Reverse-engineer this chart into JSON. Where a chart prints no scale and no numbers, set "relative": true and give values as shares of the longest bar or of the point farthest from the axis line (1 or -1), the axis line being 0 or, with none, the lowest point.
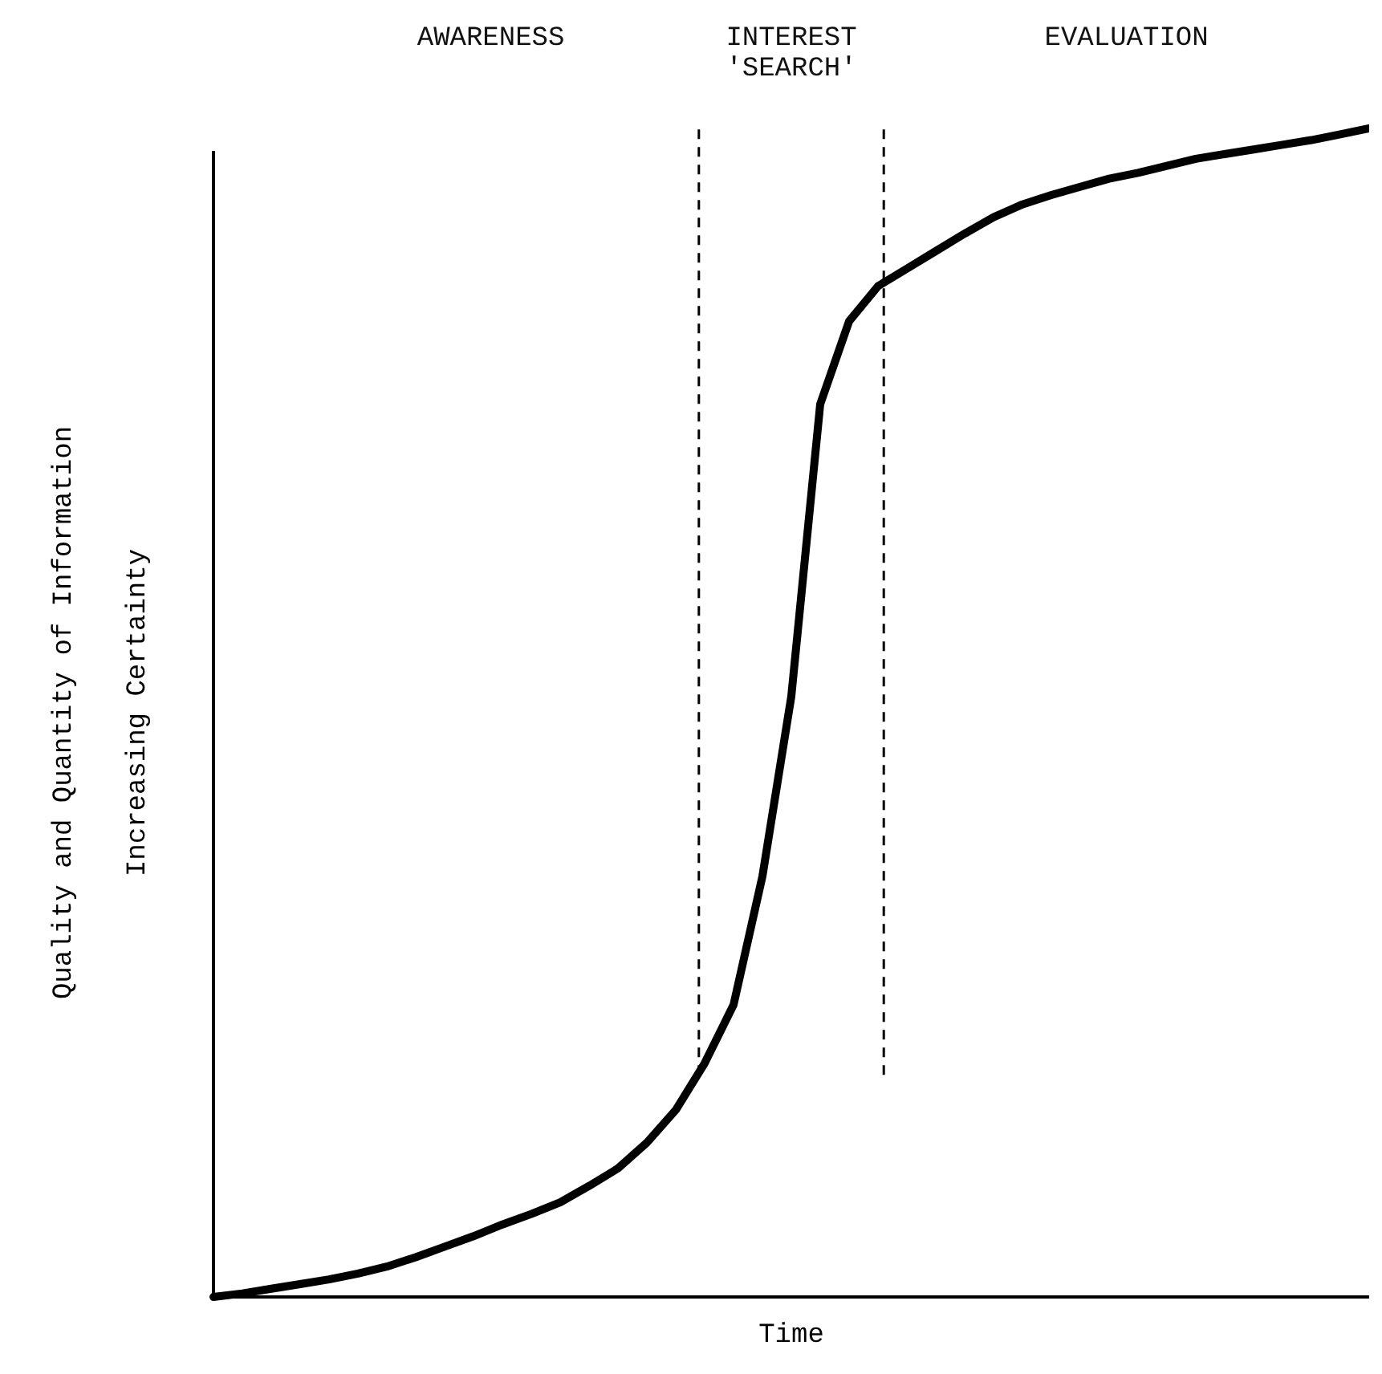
{
  "chart_data": {
    "type": "line",
    "relative": true,
    "xlabel": "Time",
    "ylabel": "Quality and Quantity of Information\nIncreasing Certainty",
    "categories": [
      null,
      null,
      null,
      null,
      null,
      null,
      null,
      null,
      null,
      null,
      null,
      null,
      null,
      null,
      null,
      null,
      null,
      null,
      null,
      null,
      null,
      null,
      null,
      null,
      null,
      null,
      null,
      null,
      null,
      null,
      null,
      null,
      null,
      null,
      null,
      null,
      null,
      null,
      null,
      null,
      null
    ],
    "series": [
      {
        "color": "#000000",
        "values": [
          0,
          0.003,
          0.007,
          0.011,
          0.015,
          0.02,
          0.026,
          0.034,
          0.043,
          0.052,
          0.062,
          0.071,
          0.081,
          0.095,
          0.11,
          0.132,
          0.16,
          0.2,
          0.25,
          0.36,
          0.514,
          0.764,
          0.835,
          0.865,
          0.88,
          0.895,
          0.91,
          0.924,
          0.935,
          0.943,
          0.95,
          0.957,
          0.962,
          0.968,
          0.974,
          0.978,
          0.982,
          0.986,
          0.99,
          0.995,
          1
        ]
      }
    ],
    "line_style": "solid",
    "annotations": [
      "AWARENESS",
      "INTEREST\n'SEARCH'",
      "EVALUATION"
    ]
  }
}
